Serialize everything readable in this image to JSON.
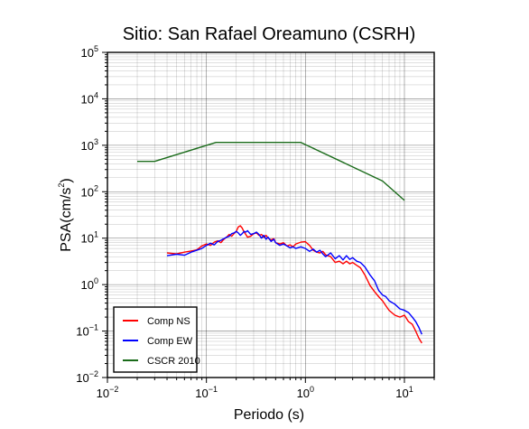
{
  "chart_data": {
    "type": "line",
    "title": "Sitio: San Rafael Oreamuno (CSRH)",
    "xlabel": "Periodo (s)",
    "ylabel": "PSA(cm/s",
    "ylabel_exp": "2",
    "ylabel_tail": ")",
    "xscale": "log",
    "yscale": "log",
    "xlim": [
      0.01,
      20
    ],
    "ylim": [
      0.01,
      100000
    ],
    "grid": true,
    "legend_position": "bottom-left",
    "x_ticks": [
      {
        "value": 0.01,
        "base": "10",
        "exp": "−2"
      },
      {
        "value": 0.1,
        "base": "10",
        "exp": "−1"
      },
      {
        "value": 1,
        "base": "10",
        "exp": "0"
      },
      {
        "value": 10,
        "base": "10",
        "exp": "1"
      }
    ],
    "y_ticks": [
      {
        "value": 0.01,
        "base": "10",
        "exp": "−2"
      },
      {
        "value": 0.1,
        "base": "10",
        "exp": "−1"
      },
      {
        "value": 1,
        "base": "10",
        "exp": "0"
      },
      {
        "value": 10,
        "base": "10",
        "exp": "1"
      },
      {
        "value": 100,
        "base": "10",
        "exp": "2"
      },
      {
        "value": 1000,
        "base": "10",
        "exp": "3"
      },
      {
        "value": 10000,
        "base": "10",
        "exp": "4"
      },
      {
        "value": 100000,
        "base": "10",
        "exp": "5"
      }
    ],
    "series": [
      {
        "name": "Comp NS",
        "color": "#ff0000",
        "x": [
          0.04,
          0.05,
          0.06,
          0.07,
          0.08,
          0.09,
          0.1,
          0.11,
          0.12,
          0.13,
          0.14,
          0.15,
          0.16,
          0.17,
          0.18,
          0.19,
          0.2,
          0.21,
          0.22,
          0.23,
          0.24,
          0.25,
          0.26,
          0.28,
          0.3,
          0.32,
          0.34,
          0.36,
          0.38,
          0.4,
          0.42,
          0.45,
          0.48,
          0.5,
          0.55,
          0.6,
          0.65,
          0.7,
          0.75,
          0.8,
          0.9,
          1.0,
          1.1,
          1.2,
          1.3,
          1.4,
          1.5,
          1.6,
          1.8,
          2.0,
          2.2,
          2.4,
          2.6,
          2.8,
          3.0,
          3.3,
          3.6,
          4.0,
          4.5,
          5.0,
          5.5,
          6.0,
          6.5,
          7.0,
          8.0,
          9.0,
          10.0,
          11.0,
          12.0,
          13.0,
          14.0,
          15.0
        ],
        "y": [
          4.8,
          4.6,
          5.0,
          5.3,
          5.6,
          6.8,
          7.5,
          7.0,
          8.2,
          8.8,
          8.0,
          9.5,
          10.5,
          12.0,
          11.0,
          12.5,
          14.0,
          17.5,
          18.5,
          16.5,
          13.5,
          12.0,
          10.5,
          11.0,
          12.5,
          13.0,
          11.5,
          12.0,
          10.5,
          11.5,
          10.0,
          9.2,
          9.8,
          8.0,
          7.5,
          8.0,
          6.8,
          7.2,
          6.5,
          7.5,
          8.2,
          8.4,
          7.0,
          5.5,
          5.0,
          4.8,
          5.2,
          4.4,
          4.0,
          3.0,
          3.2,
          2.8,
          3.2,
          2.8,
          3.0,
          2.6,
          2.3,
          1.6,
          0.95,
          0.7,
          0.55,
          0.45,
          0.35,
          0.28,
          0.22,
          0.2,
          0.22,
          0.16,
          0.14,
          0.1,
          0.07,
          0.055
        ]
      },
      {
        "name": "Comp EW",
        "color": "#0000ff",
        "x": [
          0.04,
          0.05,
          0.06,
          0.07,
          0.08,
          0.09,
          0.1,
          0.11,
          0.12,
          0.13,
          0.14,
          0.15,
          0.16,
          0.17,
          0.18,
          0.19,
          0.2,
          0.21,
          0.22,
          0.23,
          0.24,
          0.25,
          0.26,
          0.28,
          0.3,
          0.32,
          0.34,
          0.36,
          0.38,
          0.4,
          0.42,
          0.45,
          0.48,
          0.5,
          0.55,
          0.6,
          0.65,
          0.7,
          0.75,
          0.8,
          0.9,
          1.0,
          1.1,
          1.2,
          1.3,
          1.4,
          1.5,
          1.6,
          1.8,
          2.0,
          2.2,
          2.4,
          2.6,
          2.8,
          3.0,
          3.3,
          3.6,
          4.0,
          4.5,
          5.0,
          5.5,
          6.0,
          6.5,
          7.0,
          8.0,
          9.0,
          10.0,
          11.0,
          12.0,
          13.0,
          14.0,
          15.0
        ],
        "y": [
          4.2,
          4.5,
          4.3,
          5.0,
          5.5,
          6.0,
          7.0,
          7.8,
          7.2,
          8.5,
          9.0,
          9.8,
          10.5,
          11.0,
          12.5,
          13.0,
          14.0,
          13.0,
          11.5,
          12.5,
          14.0,
          13.5,
          14.5,
          12.0,
          12.5,
          13.5,
          12.0,
          10.0,
          11.5,
          9.5,
          10.5,
          8.5,
          9.5,
          8.0,
          7.0,
          7.5,
          6.8,
          6.2,
          6.5,
          6.0,
          6.5,
          6.0,
          5.2,
          5.8,
          5.0,
          5.5,
          4.6,
          4.0,
          4.8,
          3.6,
          4.2,
          3.4,
          4.2,
          3.5,
          3.8,
          3.2,
          3.0,
          2.4,
          1.6,
          1.2,
          0.75,
          0.6,
          0.55,
          0.45,
          0.38,
          0.3,
          0.28,
          0.25,
          0.2,
          0.16,
          0.12,
          0.085
        ]
      },
      {
        "name": "CSCR 2010",
        "color": "#1a6b1a",
        "x": [
          0.02,
          0.03,
          0.125,
          0.2,
          0.9,
          6.0,
          10.0
        ],
        "y": [
          450,
          450,
          1150,
          1150,
          1150,
          170,
          65
        ]
      }
    ]
  }
}
